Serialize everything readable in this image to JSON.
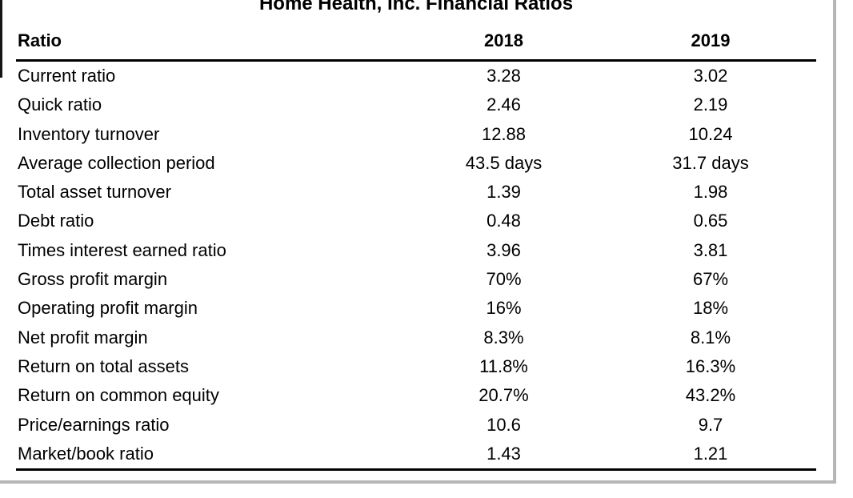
{
  "title": "Home Health, Inc. Financial Ratios",
  "table": {
    "columns": [
      "Ratio",
      "2018",
      "2019"
    ],
    "rows": [
      [
        "Current ratio",
        "3.28",
        "3.02"
      ],
      [
        "Quick ratio",
        "2.46",
        "2.19"
      ],
      [
        "Inventory turnover",
        "12.88",
        "10.24"
      ],
      [
        "Average collection period",
        "43.5 days",
        "31.7 days"
      ],
      [
        "Total asset turnover",
        "1.39",
        "1.98"
      ],
      [
        "Debt ratio",
        "0.48",
        "0.65"
      ],
      [
        "Times interest earned ratio",
        "3.96",
        "3.81"
      ],
      [
        "Gross profit margin",
        "70%",
        "67%"
      ],
      [
        "Operating profit margin",
        "16%",
        "18%"
      ],
      [
        "Net profit margin",
        "8.3%",
        "8.1%"
      ],
      [
        "Return on total assets",
        "11.8%",
        "16.3%"
      ],
      [
        "Return on common equity",
        "20.7%",
        "43.2%"
      ],
      [
        "Price/earnings ratio",
        "10.6",
        "9.7"
      ],
      [
        "Market/book ratio",
        "1.43",
        "1.21"
      ]
    ]
  },
  "colors": {
    "text_black": "#000000",
    "rule_black": "#000000",
    "border_gray": "#b6b6b6",
    "edge_black": "#151515",
    "background": "#ffffff"
  }
}
